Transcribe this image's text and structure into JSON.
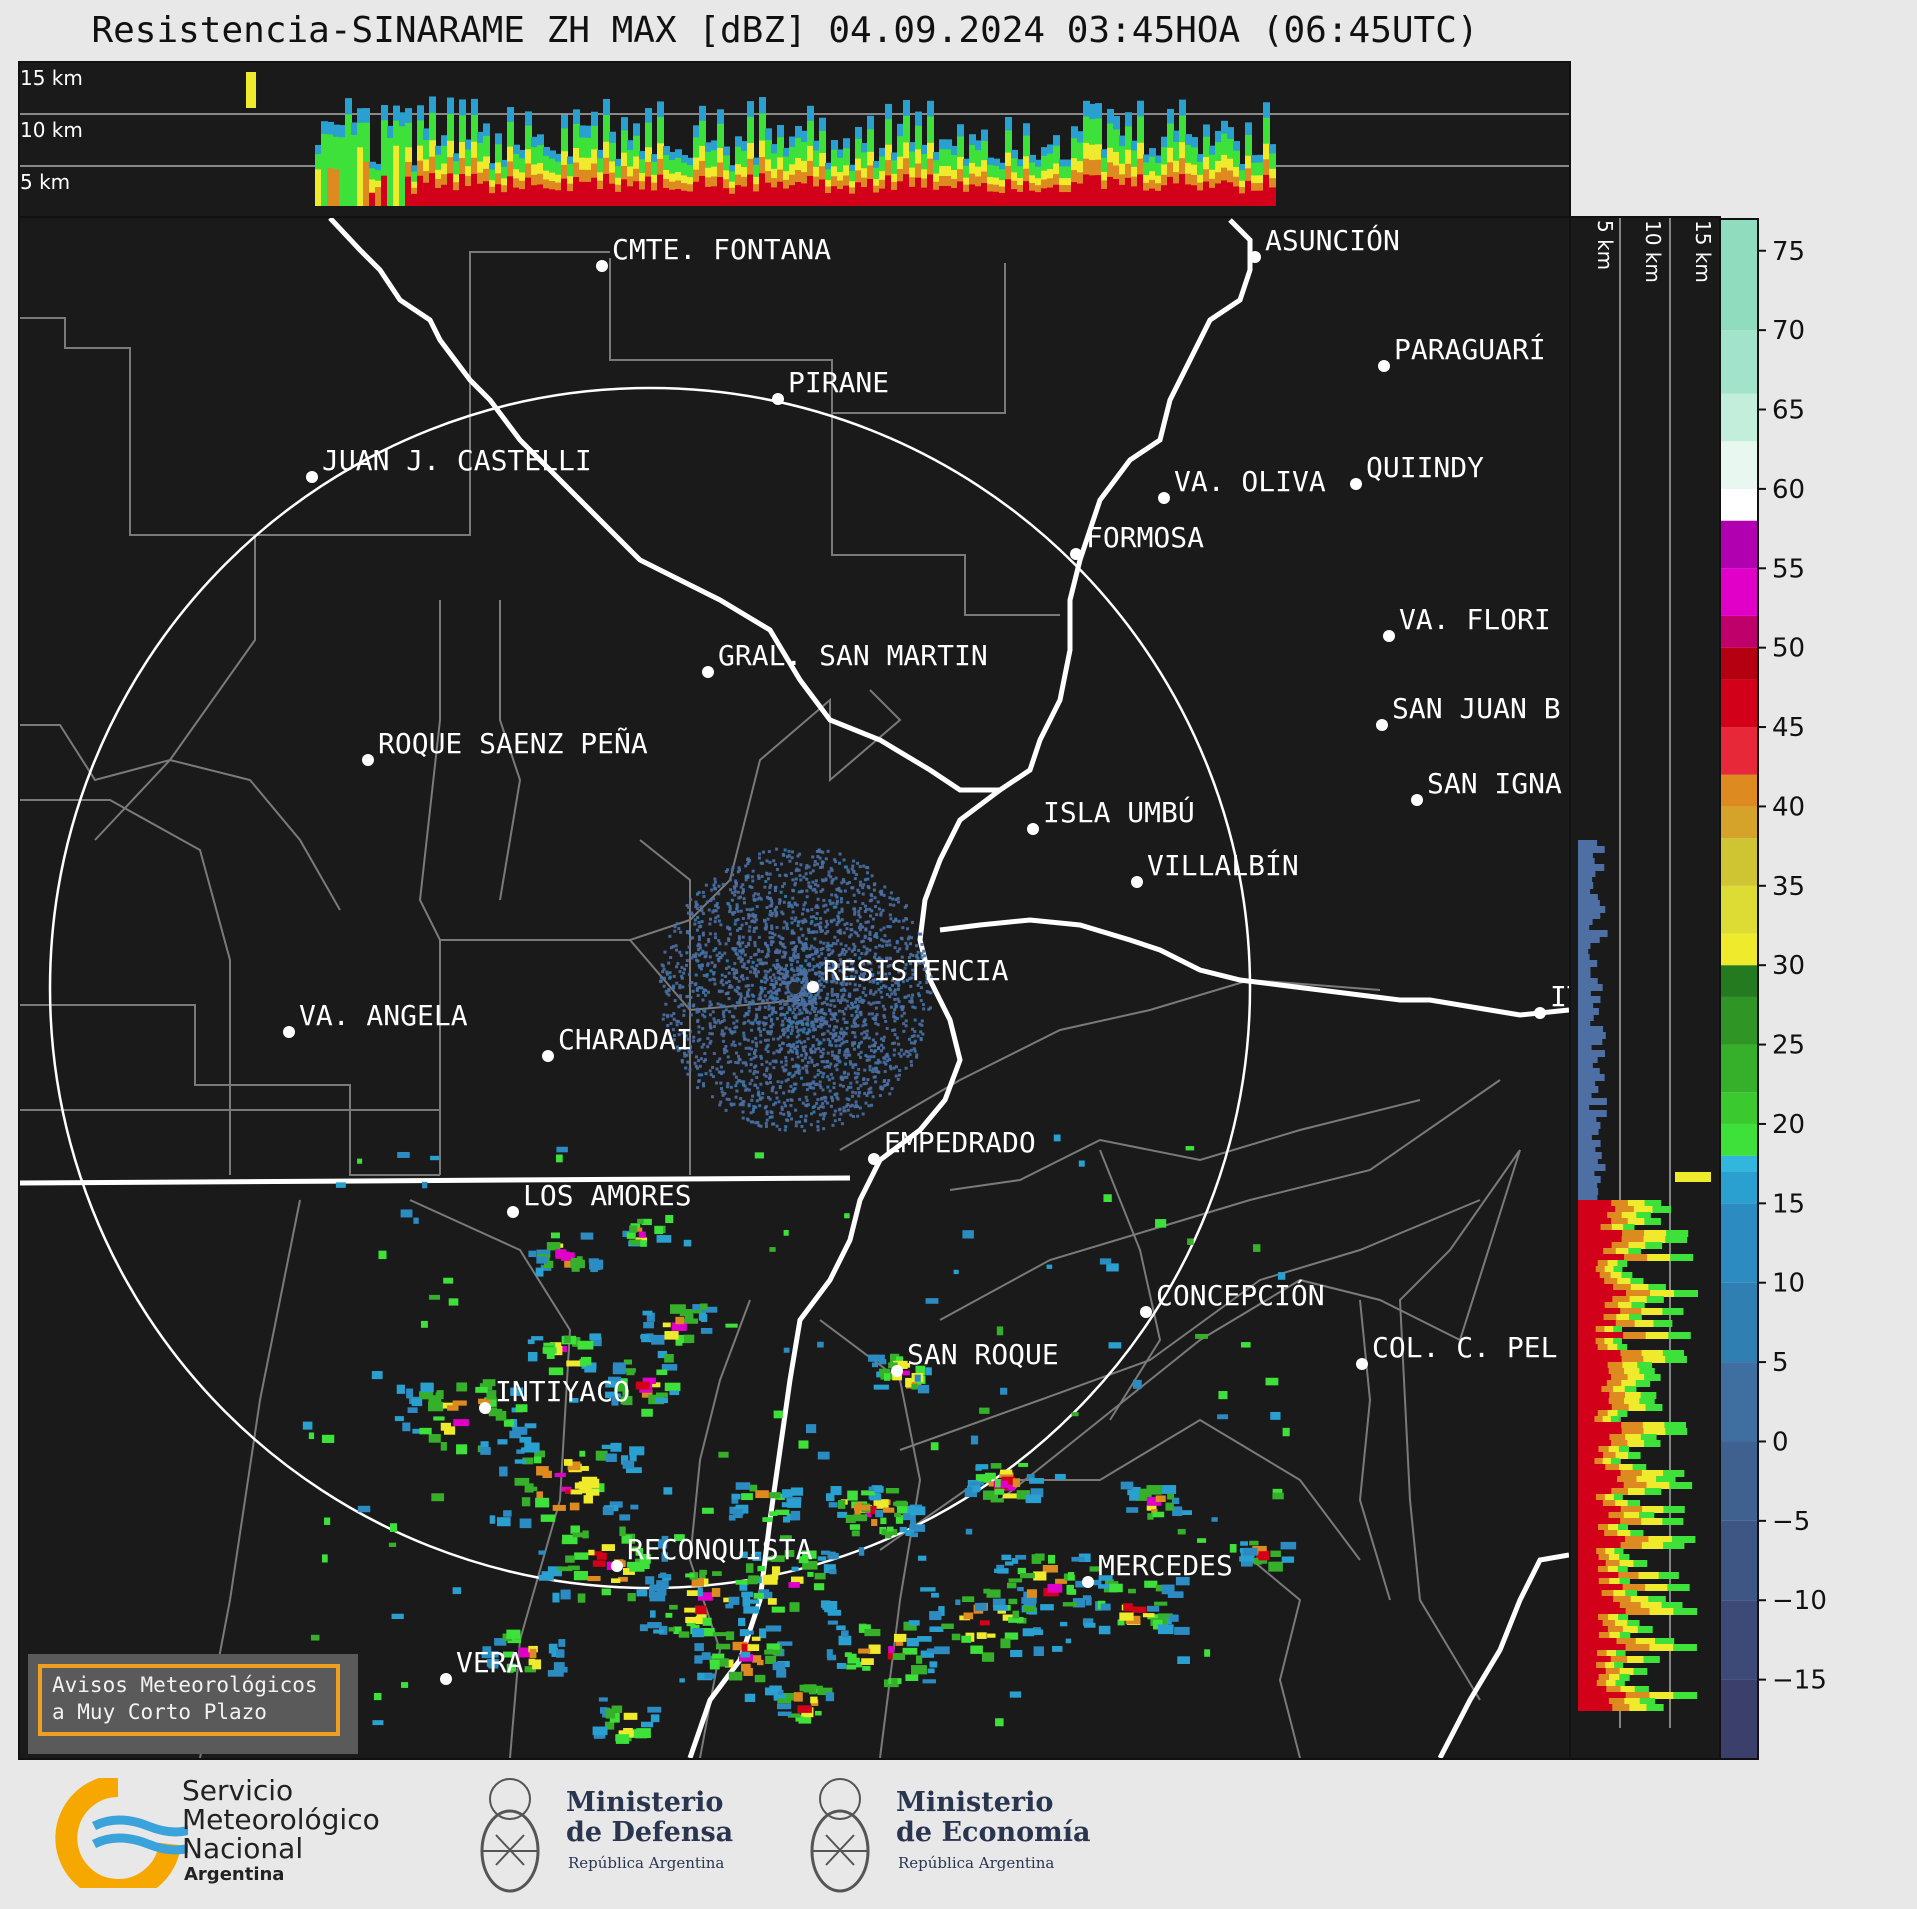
{
  "title": "Resistencia-SINARAME ZH MAX [dBZ] 04.09.2024 03:45HOA (06:45UTC)",
  "top_panel": {
    "height_labels": [
      "15 km",
      "10 km",
      "5 km"
    ]
  },
  "side_panel": {
    "height_labels": [
      "5 km",
      "10 km",
      "15 km"
    ]
  },
  "colorbar": {
    "unit": "dBZ",
    "ticks": [
      "75",
      "70",
      "65",
      "60",
      "55",
      "50",
      "45",
      "40",
      "35",
      "30",
      "25",
      "20",
      "15",
      "10",
      "5",
      "0",
      "−5",
      "−10",
      "−15"
    ],
    "range": [
      -20,
      77
    ],
    "stops": [
      {
        "from": -20,
        "color": "#3b3f6b"
      },
      {
        "from": -15,
        "color": "#3d4a78"
      },
      {
        "from": -10,
        "color": "#3e5684"
      },
      {
        "from": -5,
        "color": "#3f6190"
      },
      {
        "from": 0,
        "color": "#3f6ea0"
      },
      {
        "from": 5,
        "color": "#2f7fb3"
      },
      {
        "from": 10,
        "color": "#2c8cc2"
      },
      {
        "from": 15,
        "color": "#2aa0d0"
      },
      {
        "from": 17,
        "color": "#31b6dd"
      },
      {
        "from": 18,
        "color": "#3ee03a"
      },
      {
        "from": 20,
        "color": "#3ac92f"
      },
      {
        "from": 22,
        "color": "#36b02a"
      },
      {
        "from": 25,
        "color": "#2f9626"
      },
      {
        "from": 28,
        "color": "#247a1e"
      },
      {
        "from": 30,
        "color": "#f0ea2c"
      },
      {
        "from": 32,
        "color": "#dddc34"
      },
      {
        "from": 35,
        "color": "#cfc432"
      },
      {
        "from": 38,
        "color": "#d5a22a"
      },
      {
        "from": 40,
        "color": "#dd8a20"
      },
      {
        "from": 42,
        "color": "#e62838"
      },
      {
        "from": 45,
        "color": "#d20018"
      },
      {
        "from": 48,
        "color": "#b40010"
      },
      {
        "from": 50,
        "color": "#c0006a"
      },
      {
        "from": 52,
        "color": "#e000c8"
      },
      {
        "from": 55,
        "color": "#b000b0"
      },
      {
        "from": 58,
        "color": "#ffffff"
      },
      {
        "from": 60,
        "color": "#e8f7ef"
      },
      {
        "from": 63,
        "color": "#c3eedb"
      },
      {
        "from": 66,
        "color": "#a2e4cb"
      },
      {
        "from": 70,
        "color": "#8fdcbf"
      }
    ]
  },
  "cities": [
    {
      "name": "CMTE. FONTANA"
    },
    {
      "name": "ASUNCIÓN"
    },
    {
      "name": "PIRANE"
    },
    {
      "name": "PARAGUARÍ"
    },
    {
      "name": "JUAN J. CASTELLI"
    },
    {
      "name": "VA. OLIVA"
    },
    {
      "name": "QUIINDY"
    },
    {
      "name": "FORMOSA"
    },
    {
      "name": "VA. FLORI"
    },
    {
      "name": "GRAL. SAN MARTIN"
    },
    {
      "name": "SAN JUAN B"
    },
    {
      "name": "ROQUE SAENZ PEÑA"
    },
    {
      "name": "SAN IGNA"
    },
    {
      "name": "ISLA UMBÚ"
    },
    {
      "name": "VILLALBÍN"
    },
    {
      "name": "RESISTENCIA"
    },
    {
      "name": "VA. ANGELA"
    },
    {
      "name": "CHARADAI"
    },
    {
      "name": "IT"
    },
    {
      "name": "EMPEDRADO"
    },
    {
      "name": "LOS AMORES"
    },
    {
      "name": "CONCEPCIÓN"
    },
    {
      "name": "SAN ROQUE"
    },
    {
      "name": "COL. C. PEL"
    },
    {
      "name": "INTIYACO"
    },
    {
      "name": "RECONQUISTA"
    },
    {
      "name": "MERCEDES"
    },
    {
      "name": "VERA"
    }
  ],
  "alert_box": {
    "line1": "Avisos Meteorológicos",
    "line2": "a Muy Corto Plazo"
  },
  "footer": {
    "smn_line1": "Servicio",
    "smn_line2": "Meteorológico",
    "smn_line3": "Nacional",
    "smn_country": "Argentina",
    "defensa_title1": "Ministerio",
    "defensa_title2": "de Defensa",
    "defensa_sub": "República Argentina",
    "economia_title1": "Ministerio",
    "economia_title2": "de Economía",
    "economia_sub": "República Argentina"
  },
  "colors": {
    "map_bg": "#1a1a1a",
    "page_bg": "#e8e8e8",
    "alert_border": "#f0a020",
    "smn_orange": "#f6a800",
    "smn_blue": "#3aa3dc"
  }
}
